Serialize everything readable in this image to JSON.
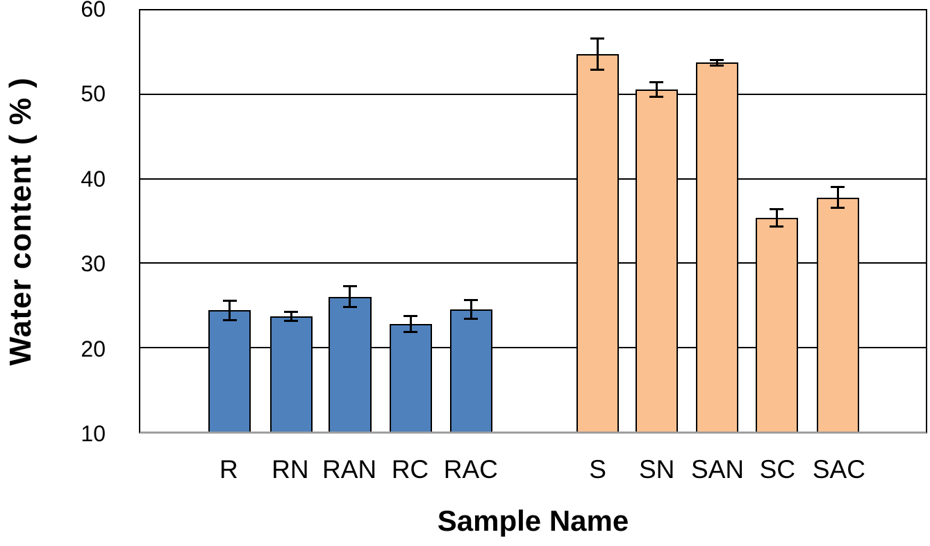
{
  "chart_data": {
    "type": "bar",
    "title": "",
    "xlabel": "Sample Name",
    "ylabel": "Water content ( % )",
    "ylim": [
      10,
      60
    ],
    "yticks": [
      10,
      20,
      30,
      40,
      50,
      60
    ],
    "grid": "horizontal black gridlines at every 10 units",
    "legend": "none",
    "categories": [
      "R",
      "RN",
      "RAN",
      "RC",
      "RAC",
      "S",
      "SN",
      "SAN",
      "SC",
      "SAC"
    ],
    "series": [
      {
        "name": "Water content",
        "values": [
          24.4,
          23.7,
          26.0,
          22.8,
          24.5,
          54.8,
          50.6,
          53.8,
          35.4,
          37.8
        ],
        "errors": [
          1.1,
          0.5,
          1.2,
          0.9,
          1.1,
          1.8,
          0.8,
          0.3,
          1.0,
          1.2
        ]
      }
    ],
    "point_groups": [
      "R",
      "R",
      "R",
      "R",
      "R",
      "S",
      "S",
      "S",
      "S",
      "S"
    ],
    "group_colors": {
      "R": "#4F81BD",
      "S": "#FAC090"
    },
    "group_gap": "one empty category slot between R-group and S-group"
  },
  "colors": {
    "bar_blue": "#4F81BD",
    "bar_orange": "#FAC090",
    "bar_outline": "#000000",
    "gridline": "#000000",
    "x_axis_line": "#9E9E9E",
    "text": "#000000",
    "background": "#FFFFFF"
  }
}
